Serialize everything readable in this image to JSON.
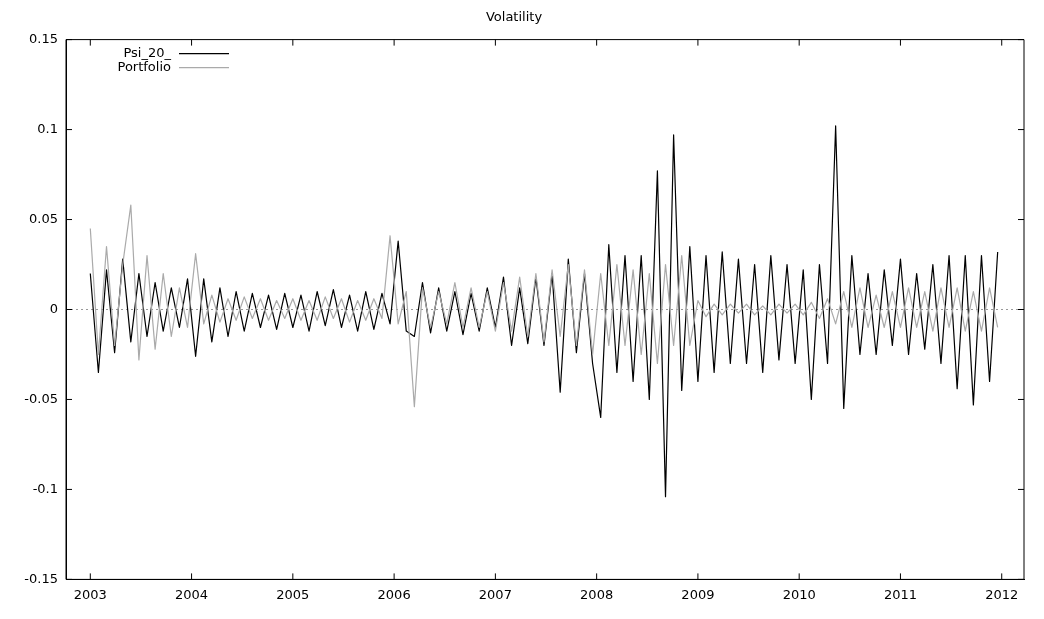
{
  "chart_data": {
    "type": "line",
    "title": "Volatility",
    "legend": "top left",
    "grid": false,
    "marker": "none",
    "line_style": "solid",
    "xlim": [
      2002.76,
      2012.22
    ],
    "xticks": [
      2003,
      2004,
      2005,
      2006,
      2007,
      2008,
      2009,
      2010,
      2011,
      2012
    ],
    "ylim": [
      -0.15,
      0.15
    ],
    "yticks": [
      -0.15,
      -0.1,
      -0.05,
      0,
      0.05,
      0.1,
      0.15
    ],
    "ref_lines": [
      {
        "axis": "y",
        "value": 0,
        "color": "#999999",
        "line_style": "dotted"
      }
    ],
    "x": [
      2003,
      2003.08,
      2003.16,
      2003.24,
      2003.32,
      2003.4,
      2003.48,
      2003.56,
      2003.64,
      2003.72,
      2003.8,
      2003.88,
      2003.96,
      2004.04,
      2004.12,
      2004.2,
      2004.28,
      2004.36,
      2004.44,
      2004.52,
      2004.6,
      2004.68,
      2004.76,
      2004.84,
      2004.92,
      2005,
      2005.08,
      2005.16,
      2005.24,
      2005.32,
      2005.4,
      2005.48,
      2005.56,
      2005.64,
      2005.72,
      2005.8,
      2005.88,
      2005.96,
      2006.04,
      2006.12,
      2006.2,
      2006.28,
      2006.36,
      2006.44,
      2006.52,
      2006.6,
      2006.68,
      2006.76,
      2006.84,
      2006.92,
      2007,
      2007.08,
      2007.16,
      2007.24,
      2007.32,
      2007.4,
      2007.48,
      2007.56,
      2007.64,
      2007.72,
      2007.8,
      2007.88,
      2007.96,
      2008.04,
      2008.12,
      2008.2,
      2008.28,
      2008.36,
      2008.44,
      2008.52,
      2008.6,
      2008.68,
      2008.76,
      2008.84,
      2008.92,
      2009,
      2009.08,
      2009.16,
      2009.24,
      2009.32,
      2009.4,
      2009.48,
      2009.56,
      2009.64,
      2009.72,
      2009.8,
      2009.88,
      2009.96,
      2010.04,
      2010.12,
      2010.2,
      2010.28,
      2010.36,
      2010.44,
      2010.52,
      2010.6,
      2010.68,
      2010.76,
      2010.84,
      2010.92,
      2011,
      2011.08,
      2011.16,
      2011.24,
      2011.32,
      2011.4,
      2011.48,
      2011.56,
      2011.64,
      2011.72,
      2011.8,
      2011.88,
      2011.96
    ],
    "series": [
      {
        "name": "Psi_20_",
        "color": "#000000",
        "values": [
          0.02,
          -0.035,
          0.022,
          -0.024,
          0.028,
          -0.018,
          0.02,
          -0.015,
          0.015,
          -0.012,
          0.012,
          -0.01,
          0.017,
          -0.026,
          0.017,
          -0.018,
          0.012,
          -0.015,
          0.01,
          -0.012,
          0.009,
          -0.01,
          0.008,
          -0.011,
          0.009,
          -0.01,
          0.008,
          -0.012,
          0.01,
          -0.009,
          0.011,
          -0.01,
          0.008,
          -0.012,
          0.01,
          -0.011,
          0.009,
          -0.008,
          0.038,
          -0.012,
          -0.015,
          0.015,
          -0.013,
          0.012,
          -0.012,
          0.01,
          -0.014,
          0.009,
          -0.012,
          0.012,
          -0.01,
          0.018,
          -0.02,
          0.012,
          -0.019,
          0.018,
          -0.02,
          0.02,
          -0.046,
          0.028,
          -0.024,
          0.02,
          -0.03,
          -0.06,
          0.036,
          -0.035,
          0.03,
          -0.04,
          0.03,
          -0.05,
          0.077,
          -0.104,
          0.097,
          -0.045,
          0.035,
          -0.04,
          0.03,
          -0.035,
          0.032,
          -0.03,
          0.028,
          -0.03,
          0.025,
          -0.035,
          0.03,
          -0.028,
          0.025,
          -0.03,
          0.022,
          -0.05,
          0.025,
          -0.03,
          0.102,
          -0.055,
          0.03,
          -0.025,
          0.02,
          -0.025,
          0.022,
          -0.02,
          0.028,
          -0.025,
          0.02,
          -0.022,
          0.025,
          -0.03,
          0.03,
          -0.044,
          0.03,
          -0.053,
          0.03,
          -0.04,
          0.032
        ]
      },
      {
        "name": "Portfolio",
        "color": "#aaaaaa",
        "values": [
          0.045,
          -0.025,
          0.035,
          -0.02,
          0.025,
          0.058,
          -0.028,
          0.03,
          -0.022,
          0.02,
          -0.015,
          0.012,
          -0.01,
          0.031,
          -0.008,
          0.008,
          -0.007,
          0.006,
          -0.006,
          0.007,
          -0.005,
          0.006,
          -0.006,
          0.005,
          -0.005,
          0.006,
          -0.006,
          0.005,
          -0.006,
          0.007,
          -0.005,
          0.006,
          -0.007,
          0.005,
          -0.006,
          0.006,
          -0.005,
          0.041,
          -0.008,
          0.01,
          -0.054,
          0.012,
          -0.01,
          0.01,
          -0.008,
          0.015,
          -0.01,
          0.012,
          -0.01,
          0.01,
          -0.012,
          0.015,
          -0.012,
          0.018,
          -0.015,
          0.02,
          -0.018,
          0.022,
          -0.015,
          0.025,
          -0.02,
          0.022,
          -0.025,
          0.02,
          -0.02,
          0.025,
          -0.02,
          0.022,
          -0.025,
          0.02,
          -0.03,
          0.025,
          -0.02,
          0.03,
          -0.02,
          0.005,
          -0.004,
          0.003,
          -0.003,
          0.003,
          -0.002,
          0.003,
          -0.003,
          0.002,
          -0.003,
          0.003,
          -0.002,
          0.003,
          -0.003,
          0.004,
          -0.005,
          0.006,
          -0.008,
          0.01,
          -0.01,
          0.012,
          -0.01,
          0.008,
          -0.01,
          0.01,
          -0.01,
          0.012,
          -0.01,
          0.01,
          -0.012,
          0.012,
          -0.01,
          0.012,
          -0.012,
          0.01,
          -0.012,
          0.012,
          -0.01
        ]
      }
    ]
  }
}
